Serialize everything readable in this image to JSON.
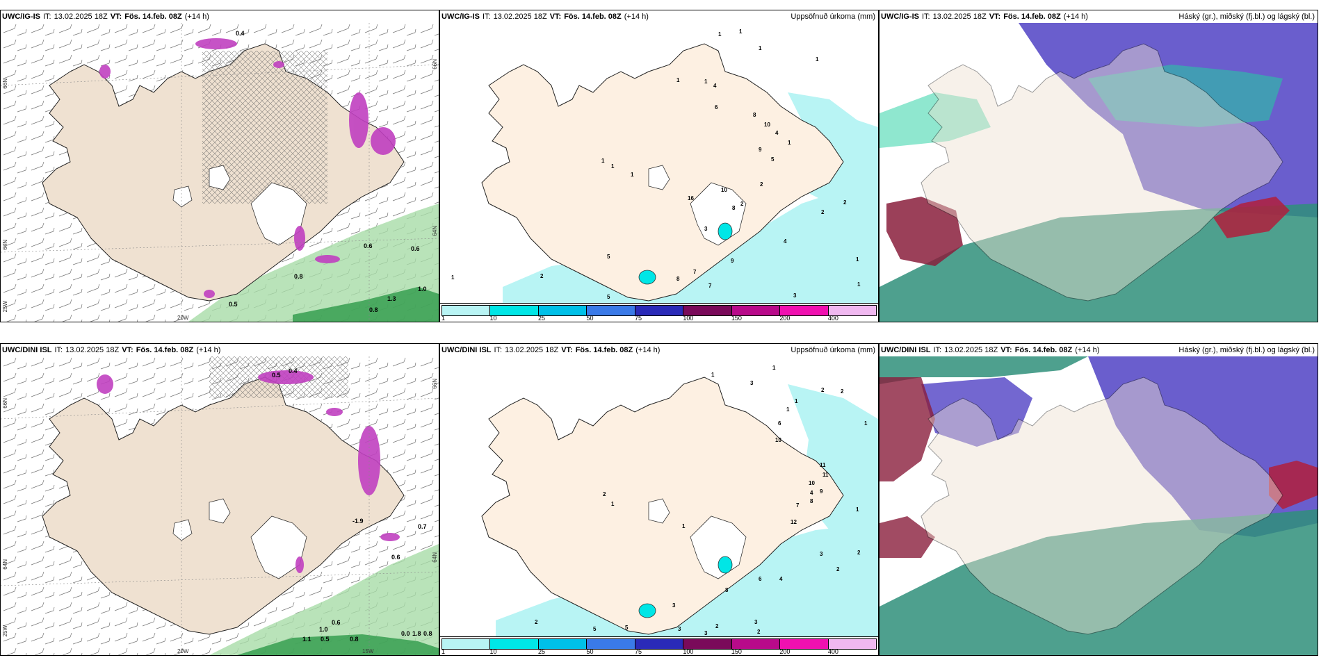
{
  "panels": [
    {
      "model": "UWC/IG-IS",
      "it_label": "IT:",
      "it": "13.02.2025 18Z",
      "vt_label": "VT:",
      "vt": "Fös. 14.feb. 08Z",
      "fc": "(+14 h)",
      "title": ""
    },
    {
      "model": "UWC/IG-IS",
      "it_label": "IT:",
      "it": "13.02.2025 18Z",
      "vt_label": "VT:",
      "vt": "Fös. 14.feb. 08Z",
      "fc": "(+14 h)",
      "title": "Uppsöfnuð úrkoma (mm)"
    },
    {
      "model": "UWC/IG-IS",
      "it_label": "IT:",
      "it": "13.02.2025 18Z",
      "vt_label": "VT:",
      "vt": "Fös. 14.feb. 08Z",
      "fc": "(+14 h)",
      "title": "Háský (gr.), miðský (fj.bl.) og lágský (bl.)"
    },
    {
      "model": "UWC/DINI ISL",
      "it_label": "IT:",
      "it": "13.02.2025 18Z",
      "vt_label": "VT:",
      "vt": "Fös. 14.feb. 08Z",
      "fc": "(+14 h)",
      "title": ""
    },
    {
      "model": "UWC/DINI ISL",
      "it_label": "IT:",
      "it": "13.02.2025 18Z",
      "vt_label": "VT:",
      "vt": "Fös. 14.feb. 08Z",
      "fc": "(+14 h)",
      "title": "Uppsöfnuð úrkoma (mm)"
    },
    {
      "model": "UWC/DINI ISL",
      "it_label": "IT:",
      "it": "13.02.2025 18Z",
      "vt_label": "VT:",
      "vt": "Fös. 14.feb. 08Z",
      "fc": "(+14 h)",
      "title": "Háský (gr.), miðský (fj.bl.) og lágský (bl.)"
    }
  ],
  "legend": {
    "ticks": [
      "1",
      "10",
      "25",
      "50",
      "75",
      "100",
      "150",
      "200",
      "400"
    ],
    "colors": [
      "#b8f4f4",
      "#00e6e6",
      "#00c0e8",
      "#3a7ae8",
      "#2a2ab8",
      "#7a0a5a",
      "#b80a8a",
      "#f010b0",
      "#f0b8f0"
    ]
  },
  "axis_labels": {
    "top_left": [
      "66N",
      "64N",
      "25W",
      "20W"
    ],
    "top_right": [
      "66N",
      "64N"
    ],
    "bottom_left": [
      "66N",
      "64N",
      "25W",
      "20W",
      "15W"
    ],
    "bottom_right": [
      "66N",
      "64N"
    ]
  },
  "temp_labels": {
    "p1": [
      "0.6",
      "0.6",
      "1.0",
      "0.8",
      "0.5",
      "0.8",
      "1.3",
      "0.4"
    ],
    "p4": [
      "0.5",
      "0.4",
      "-1.9",
      "0.7",
      "0.6",
      "0.6",
      "0.5",
      "1.0",
      "1.1",
      "0.8",
      "0.0",
      "1.8",
      "0.8"
    ]
  },
  "precip_labels": {
    "p2": [
      "1",
      "1",
      "1",
      "1",
      "4",
      "1",
      "1",
      "1",
      "6",
      "8",
      "10",
      "4",
      "9",
      "5",
      "1",
      "2",
      "2",
      "1",
      "1",
      "16",
      "8",
      "3",
      "10",
      "2",
      "2",
      "4",
      "1",
      "1",
      "9",
      "7",
      "7",
      "8",
      "5",
      "2",
      "3",
      "1",
      "5"
    ],
    "p5": [
      "1",
      "1",
      "3",
      "2",
      "2",
      "1",
      "1",
      "6",
      "10",
      "11",
      "11",
      "10",
      "4",
      "8",
      "9",
      "7",
      "12",
      "2",
      "1",
      "1",
      "4",
      "3",
      "2",
      "1",
      "2",
      "8",
      "6",
      "3",
      "3",
      "2",
      "3",
      "2",
      "3",
      "2",
      "5",
      "5",
      "1"
    ]
  },
  "colors": {
    "land": "#efe1d1",
    "land_precip": "#fdf0e2",
    "ice": "#ffffff",
    "sea": "#ffffff",
    "low_cloud": "#2f8f7a",
    "mid_cloud": "#5a4cc8",
    "high_cloud": "#20d0a0",
    "rain": "#b8f4f4",
    "temp_green": "#9ad89a",
    "temp_pink": "#c040c0"
  }
}
